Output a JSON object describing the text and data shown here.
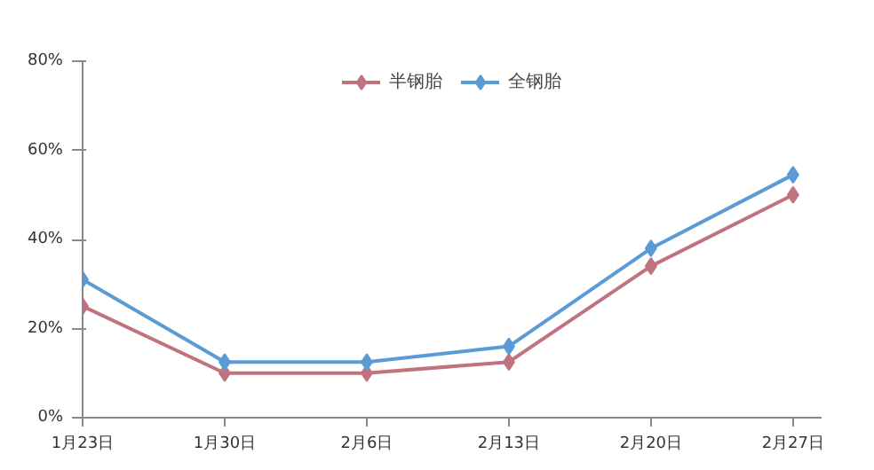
{
  "chart_data": {
    "type": "line",
    "categories": [
      "1月23日",
      "1月30日",
      "2月6日",
      "2月13日",
      "2月20日",
      "2月27日"
    ],
    "series": [
      {
        "name": "半钢胎",
        "color": "#c0737f",
        "values": [
          25,
          10,
          10,
          12.5,
          34,
          50
        ]
      },
      {
        "name": "全钢胎",
        "color": "#5b9bd5",
        "values": [
          31,
          12.5,
          12.5,
          16,
          38,
          54.5
        ]
      }
    ],
    "ylim": [
      0,
      80
    ],
    "yticks": [
      {
        "value": 0,
        "label": "0%"
      },
      {
        "value": 20,
        "label": "20%"
      },
      {
        "value": 40,
        "label": "40%"
      },
      {
        "value": 60,
        "label": "60%"
      },
      {
        "value": 80,
        "label": "80%"
      }
    ],
    "grid": false,
    "legend": "top",
    "marker": "diamond",
    "line_style": "solid"
  }
}
